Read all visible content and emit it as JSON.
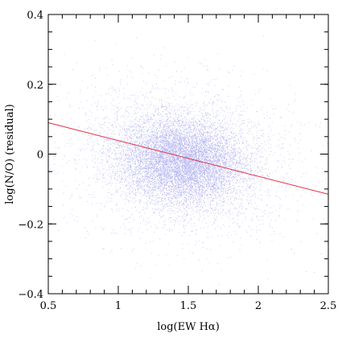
{
  "chart_data": {
    "type": "scatter",
    "title": "",
    "xlabel": "log(EW Hα)",
    "ylabel": "log(N/O) (residual)",
    "xlim": [
      0.5,
      2.5
    ],
    "ylim": [
      -0.4,
      0.4
    ],
    "x_ticks_major": [
      0.5,
      1,
      1.5,
      2,
      2.5
    ],
    "x_tick_labels": [
      "0.5",
      "1",
      "1.5",
      "2",
      "2.5"
    ],
    "y_ticks_major": [
      -0.4,
      -0.2,
      0,
      0.2,
      0.4
    ],
    "y_tick_labels": [
      "−0.4",
      "−0.2",
      "0",
      "0.2",
      "0.4"
    ],
    "x_ticks_minor_step": 0.1,
    "y_ticks_minor_step": 0.05,
    "grid": false,
    "colors": {
      "points": "#2a2ad8",
      "fit": "#e0304a",
      "axes": "#000000"
    },
    "scatter_cloud": {
      "x_center": 1.45,
      "y_center": -0.02,
      "x_spread": 0.22,
      "y_spread": 0.06,
      "n_points": 26000,
      "description_of_shape": "dense elliptical cloud"
    },
    "fit_line": {
      "x": [
        0.5,
        2.5
      ],
      "y": [
        0.09,
        -0.115
      ]
    }
  }
}
